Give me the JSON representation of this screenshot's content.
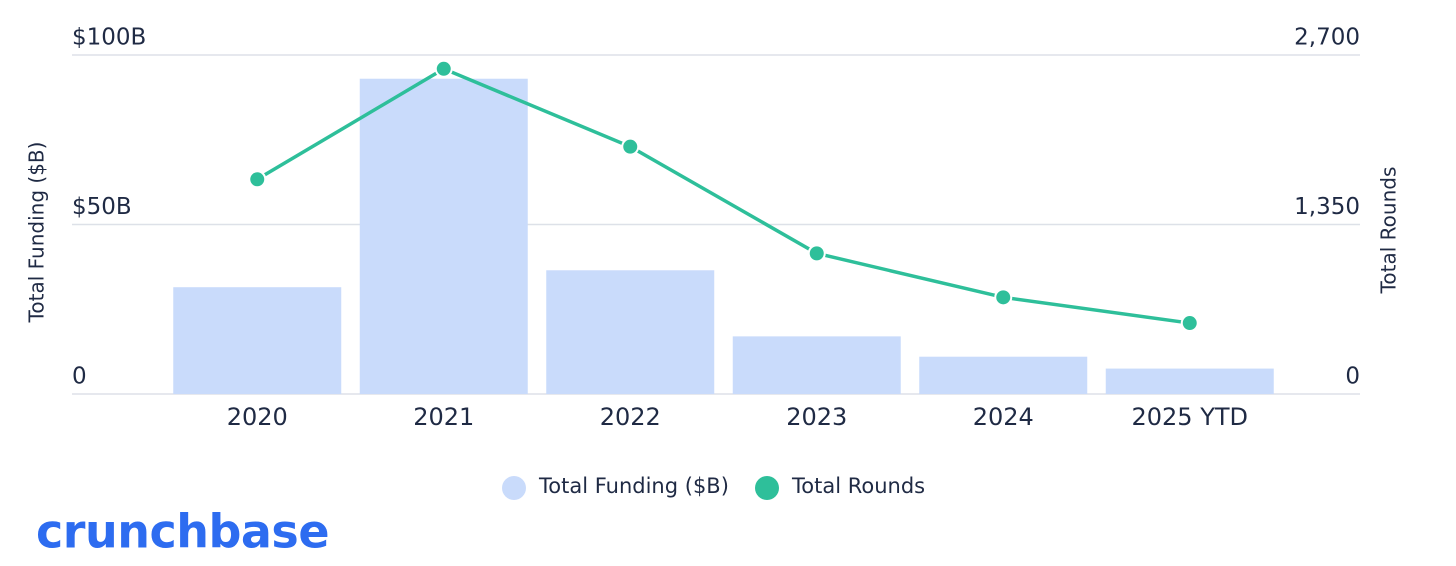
{
  "chart_data": {
    "type": "combo",
    "categories": [
      "2020",
      "2021",
      "2022",
      "2023",
      "2024",
      "2025 YTD"
    ],
    "series": [
      {
        "name": "Total Funding ($B)",
        "type": "bar",
        "color": "#c9dbfb",
        "values": [
          31.5,
          93,
          36.5,
          17,
          11,
          7.5
        ]
      },
      {
        "name": "Total Rounds",
        "type": "line",
        "color": "#2ebf9a",
        "axis": "y2",
        "values": [
          1710,
          2590,
          1970,
          1120,
          770,
          565
        ]
      }
    ],
    "ylabel": "Total Funding ($B)",
    "y2label": "Total Rounds",
    "ylim": [
      0,
      100
    ],
    "yticks": [
      0,
      {
        "value": 50,
        "label": "$50B"
      },
      {
        "value": 100,
        "label": "$100B"
      }
    ],
    "y2lim": [
      0,
      2700
    ],
    "y2ticks": [
      0,
      {
        "value": 1350,
        "label": "1,350"
      },
      {
        "value": 2700,
        "label": "2,700"
      }
    ],
    "grid": true,
    "legend": "bottom"
  },
  "logo": "crunchbase"
}
